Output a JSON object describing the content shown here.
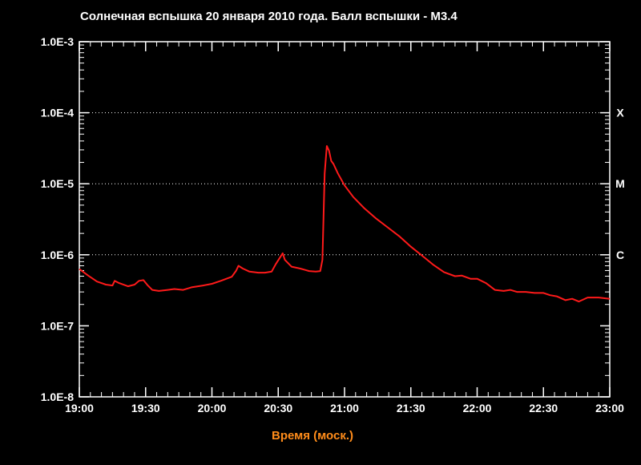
{
  "colors": {
    "background": "#000000",
    "axes": "#ffffff",
    "series": "#ff1a1a",
    "xlabel": "#ff8c1a",
    "grid": "#ffffff"
  },
  "chart_data": {
    "type": "line",
    "title": "Солнечная вспышка 20 января 2010 года. Балл вспышки - M3.4",
    "xlabel": "Время (моск.)",
    "ylabel": "",
    "yscale": "log",
    "xlim": [
      "19:00",
      "23:00"
    ],
    "ylim": [
      1e-08,
      0.001
    ],
    "x_ticks": [
      "19:00",
      "19:30",
      "20:00",
      "20:30",
      "21:00",
      "21:30",
      "22:00",
      "22:30",
      "23:00"
    ],
    "y_ticks": [
      "1.0E-8",
      "1.0E-7",
      "1.0E-6",
      "1.0E-5",
      "1.0E-4",
      "1.0E-3"
    ],
    "class_labels": [
      {
        "label": "X",
        "value": 0.0001
      },
      {
        "label": "M",
        "value": 1e-05
      },
      {
        "label": "C",
        "value": 1e-06
      }
    ],
    "gridlines_at": [
      1e-06,
      1e-05,
      0.0001
    ],
    "series": [
      {
        "x": [
          "19:00",
          "19:04",
          "19:08",
          "19:12",
          "19:15",
          "19:16",
          "19:18",
          "19:22",
          "19:25",
          "19:27",
          "19:29",
          "19:31",
          "19:33",
          "19:36",
          "19:40",
          "19:43",
          "19:47",
          "19:51",
          "19:56",
          "20:00",
          "20:04",
          "20:09",
          "20:11",
          "20:12",
          "20:14",
          "20:17",
          "20:21",
          "20:24",
          "20:27",
          "20:29",
          "20:32",
          "20:33",
          "20:36",
          "20:40",
          "20:44",
          "20:47",
          "20:49",
          "20:50",
          "20:51",
          "20:52",
          "20:53",
          "20:54",
          "20:55",
          "20:57",
          "21:00",
          "21:04",
          "21:09",
          "21:14",
          "21:19",
          "21:25",
          "21:30",
          "21:35",
          "21:40",
          "21:45",
          "21:50",
          "21:53",
          "21:57",
          "22:00",
          "22:04",
          "22:08",
          "22:12",
          "22:15",
          "22:18",
          "22:22",
          "22:26",
          "22:30",
          "22:33",
          "22:36",
          "22:40",
          "22:43",
          "22:46",
          "22:50",
          "22:55",
          "23:00"
        ],
        "y": [
          6.3e-07,
          5.1e-07,
          4.2e-07,
          3.8e-07,
          3.7e-07,
          4.3e-07,
          4e-07,
          3.6e-07,
          3.8e-07,
          4.3e-07,
          4.4e-07,
          3.7e-07,
          3.2e-07,
          3.1e-07,
          3.2e-07,
          3.3e-07,
          3.2e-07,
          3.5e-07,
          3.7e-07,
          3.9e-07,
          4.3e-07,
          4.9e-07,
          6e-07,
          7e-07,
          6.4e-07,
          5.8e-07,
          5.6e-07,
          5.6e-07,
          5.8e-07,
          7.5e-07,
          1.05e-06,
          8.5e-07,
          6.8e-07,
          6.4e-07,
          5.9e-07,
          5.8e-07,
          5.9e-07,
          8.5e-07,
          1.4e-05,
          3.4e-05,
          2.9e-05,
          2.1e-05,
          1.9e-05,
          1.4e-05,
          9.5e-06,
          6.5e-06,
          4.5e-06,
          3.3e-06,
          2.5e-06,
          1.8e-06,
          1.3e-06,
          9.8e-07,
          7.3e-07,
          5.7e-07,
          5e-07,
          5.1e-07,
          4.6e-07,
          4.6e-07,
          4e-07,
          3.2e-07,
          3.1e-07,
          3.2e-07,
          3e-07,
          3e-07,
          2.9e-07,
          2.9e-07,
          2.7e-07,
          2.6e-07,
          2.3e-07,
          2.4e-07,
          2.2e-07,
          2.5e-07,
          2.5e-07,
          2.4e-07
        ]
      }
    ]
  }
}
